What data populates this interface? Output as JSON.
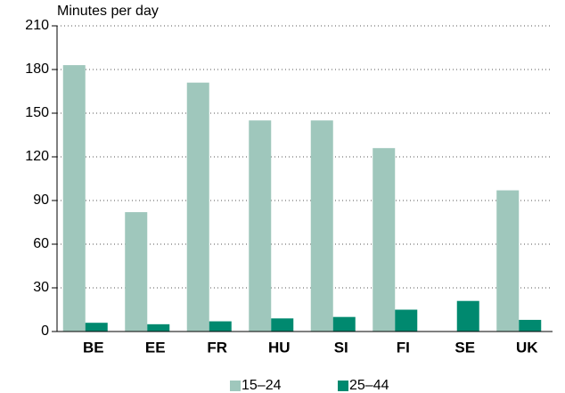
{
  "chart_data": {
    "type": "bar",
    "y_label": "Minutes per day",
    "categories": [
      "BE",
      "EE",
      "FR",
      "HU",
      "SI",
      "FI",
      "SE",
      "UK"
    ],
    "series": [
      {
        "name": "15–24",
        "color": "#9fc7bc",
        "values": [
          183,
          82,
          171,
          145,
          145,
          126,
          null,
          97
        ]
      },
      {
        "name": "25–44",
        "color": "#00896f",
        "values": [
          6,
          5,
          7,
          9,
          10,
          15,
          21,
          8
        ]
      }
    ],
    "ylim": [
      0,
      210
    ],
    "yticks": [
      0,
      30,
      60,
      90,
      120,
      150,
      180,
      210
    ],
    "grid": true,
    "legend": "bottom"
  }
}
